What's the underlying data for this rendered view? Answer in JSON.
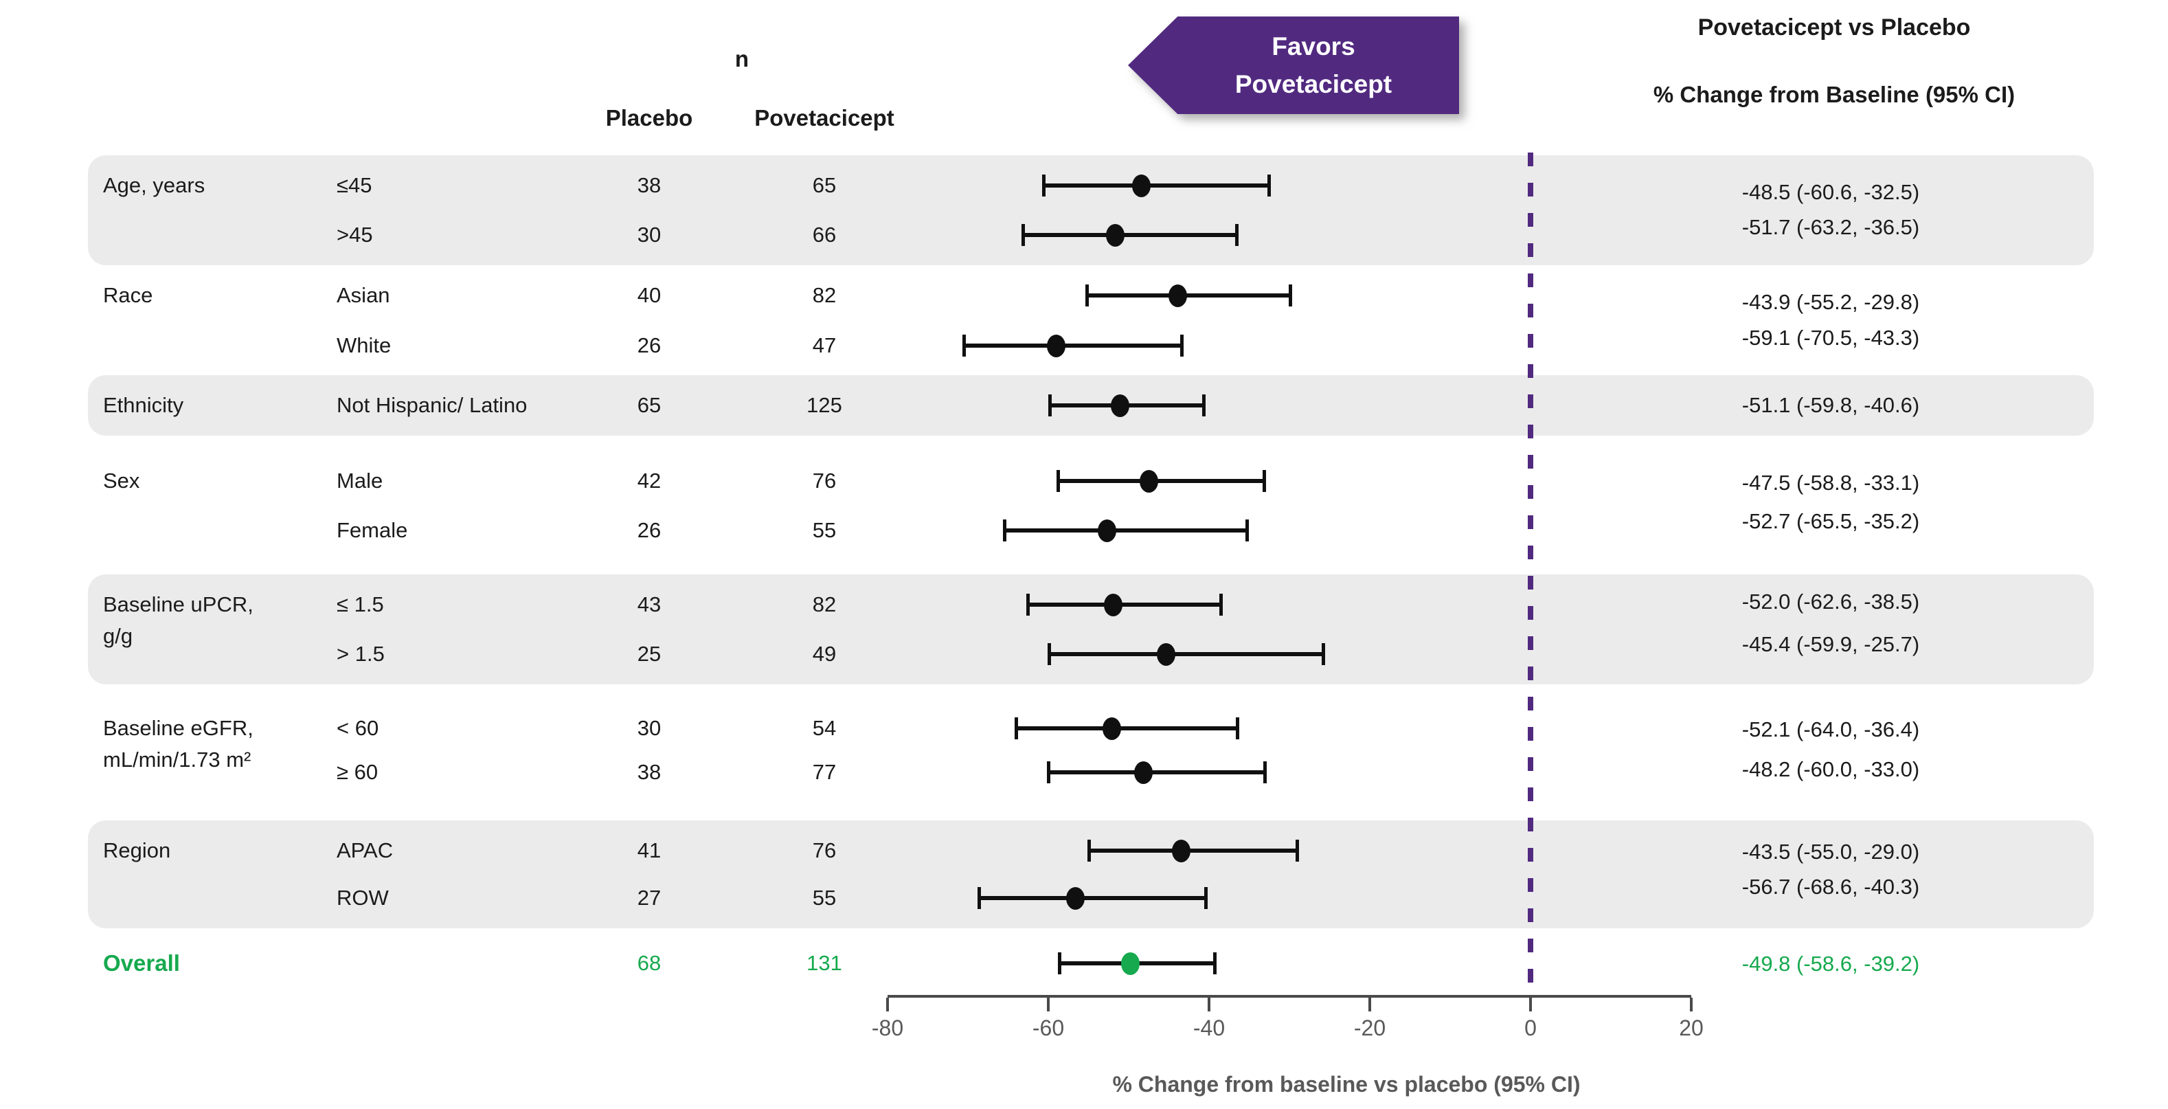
{
  "columns": {
    "n": "n",
    "placebo": "Placebo",
    "povetacicept": "Povetacicept"
  },
  "favors_flag": {
    "line1": "Favors",
    "line2": "Povetacicept"
  },
  "right_title": {
    "line1": "Povetacicept vs Placebo",
    "line2": "% Change from Baseline (95% CI)"
  },
  "colors": {
    "purple": "#512a80",
    "green": "#16a94e",
    "band_gray": "#ebebeb",
    "marker_black": "#101010",
    "axis_gray": "#4a4a4a",
    "muted_text": "#595959"
  },
  "chart_data": {
    "type": "forest",
    "x_axis": {
      "label": "% Change from baseline vs placebo (95% CI)",
      "ticks": [
        -80,
        -60,
        -40,
        -20,
        0,
        20
      ],
      "range": [
        -80,
        20
      ],
      "reference_line": 0
    },
    "groups": [
      {
        "label": "Age, years",
        "label_line2": "",
        "shaded": true,
        "rows": [
          {
            "level": "≤45",
            "placebo_n": "38",
            "povetacicept_n": "65",
            "estimate": -48.5,
            "ci_low": -60.6,
            "ci_high": -32.5,
            "ci_text": "-48.5 (-60.6, -32.5)"
          },
          {
            "level": ">45",
            "placebo_n": "30",
            "povetacicept_n": "66",
            "estimate": -51.7,
            "ci_low": -63.2,
            "ci_high": -36.5,
            "ci_text": "-51.7 (-63.2, -36.5)"
          }
        ]
      },
      {
        "label": "Race",
        "label_line2": "",
        "shaded": false,
        "rows": [
          {
            "level": "Asian",
            "placebo_n": "40",
            "povetacicept_n": "82",
            "estimate": -43.9,
            "ci_low": -55.2,
            "ci_high": -29.8,
            "ci_text": "-43.9 (-55.2, -29.8)"
          },
          {
            "level": "White",
            "placebo_n": "26",
            "povetacicept_n": "47",
            "estimate": -59.1,
            "ci_low": -70.5,
            "ci_high": -43.3,
            "ci_text": "-59.1 (-70.5, -43.3)"
          }
        ]
      },
      {
        "label": "Ethnicity",
        "label_line2": "",
        "shaded": true,
        "rows": [
          {
            "level": "Not Hispanic/ Latino",
            "placebo_n": "65",
            "povetacicept_n": "125",
            "estimate": -51.1,
            "ci_low": -59.8,
            "ci_high": -40.6,
            "ci_text": "-51.1 (-59.8, -40.6)"
          }
        ]
      },
      {
        "label": "Sex",
        "label_line2": "",
        "shaded": false,
        "rows": [
          {
            "level": "Male",
            "placebo_n": "42",
            "povetacicept_n": "76",
            "estimate": -47.5,
            "ci_low": -58.8,
            "ci_high": -33.1,
            "ci_text": "-47.5 (-58.8, -33.1)"
          },
          {
            "level": "Female",
            "placebo_n": "26",
            "povetacicept_n": "55",
            "estimate": -52.7,
            "ci_low": -65.5,
            "ci_high": -35.2,
            "ci_text": "-52.7 (-65.5, -35.2)"
          }
        ]
      },
      {
        "label": "Baseline uPCR,",
        "label_line2": "g/g",
        "shaded": true,
        "rows": [
          {
            "level": "≤ 1.5",
            "placebo_n": "43",
            "povetacicept_n": "82",
            "estimate": -52.0,
            "ci_low": -62.6,
            "ci_high": -38.5,
            "ci_text": "-52.0 (-62.6, -38.5)"
          },
          {
            "level": "> 1.5",
            "placebo_n": "25",
            "povetacicept_n": "49",
            "estimate": -45.4,
            "ci_low": -59.9,
            "ci_high": -25.7,
            "ci_text": "-45.4 (-59.9, -25.7)"
          }
        ]
      },
      {
        "label": "Baseline eGFR,",
        "label_line2": "mL/min/1.73 m²",
        "shaded": false,
        "rows": [
          {
            "level": "< 60",
            "placebo_n": "30",
            "povetacicept_n": "54",
            "estimate": -52.1,
            "ci_low": -64.0,
            "ci_high": -36.4,
            "ci_text": "-52.1 (-64.0, -36.4)"
          },
          {
            "level": "≥ 60",
            "placebo_n": "38",
            "povetacicept_n": "77",
            "estimate": -48.2,
            "ci_low": -60.0,
            "ci_high": -33.0,
            "ci_text": "-48.2 (-60.0, -33.0)"
          }
        ]
      },
      {
        "label": "Region",
        "label_line2": "",
        "shaded": true,
        "rows": [
          {
            "level": "APAC",
            "placebo_n": "41",
            "povetacicept_n": "76",
            "estimate": -43.5,
            "ci_low": -55.0,
            "ci_high": -29.0,
            "ci_text": "-43.5 (-55.0, -29.0)"
          },
          {
            "level": "ROW",
            "placebo_n": "27",
            "povetacicept_n": "55",
            "estimate": -56.7,
            "ci_low": -68.6,
            "ci_high": -40.3,
            "ci_text": "-56.7 (-68.6, -40.3)"
          }
        ]
      }
    ],
    "overall": {
      "label": "Overall",
      "placebo_n": "68",
      "povetacicept_n": "131",
      "estimate": -49.8,
      "ci_low": -58.6,
      "ci_high": -39.2,
      "ci_text": "-49.8 (-58.6, -39.2)"
    }
  }
}
